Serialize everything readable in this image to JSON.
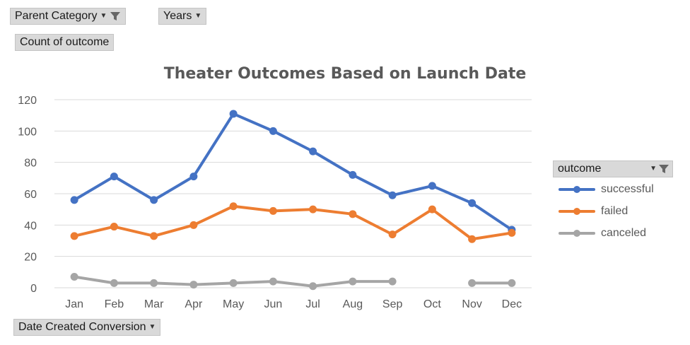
{
  "pivot": {
    "parent_category_label": "Parent Category",
    "years_label": "Years",
    "value_field_label": "Count of outcome",
    "axis_field_label": "Date Created Conversion",
    "legend_field_label": "outcome"
  },
  "colors": {
    "successful": "#4472c4",
    "failed": "#ed7d31",
    "canceled": "#a5a5a5",
    "grid": "#d9d9d9"
  },
  "chart_data": {
    "type": "line",
    "title": "Theater Outcomes Based on Launch Date",
    "categories": [
      "Jan",
      "Feb",
      "Mar",
      "Apr",
      "May",
      "Jun",
      "Jul",
      "Aug",
      "Sep",
      "Oct",
      "Nov",
      "Dec"
    ],
    "ylim": [
      0,
      120
    ],
    "yticks": [
      0,
      20,
      40,
      60,
      80,
      100,
      120
    ],
    "grid": true,
    "legend_position": "right",
    "series": [
      {
        "name": "successful",
        "values": [
          56,
          71,
          56,
          71,
          111,
          100,
          87,
          72,
          59,
          65,
          54,
          37
        ]
      },
      {
        "name": "failed",
        "values": [
          33,
          39,
          33,
          40,
          52,
          49,
          50,
          47,
          34,
          50,
          31,
          35
        ]
      },
      {
        "name": "canceled",
        "values": [
          7,
          3,
          3,
          2,
          3,
          4,
          1,
          4,
          4,
          null,
          3,
          3
        ]
      }
    ]
  }
}
